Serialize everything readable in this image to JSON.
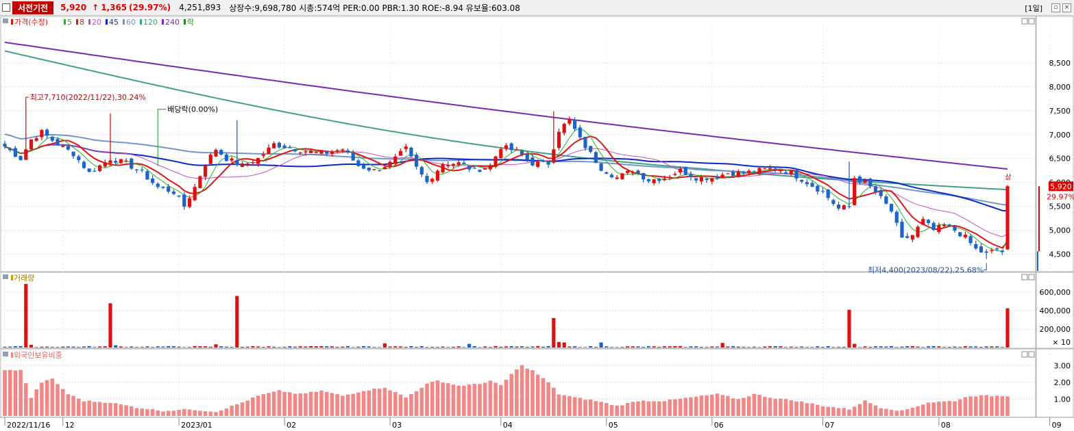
{
  "header": {
    "name": "서전기전",
    "price": "5,920",
    "arrow": "↑",
    "change": "1,365",
    "change_pct": "(29.97%)",
    "volume": "4,251,893",
    "info": "상장수:9,698,780 시총:574억 PER:0.00 PBR:1.30 ROE:-8.94 유보율:603.08",
    "period": "[1일]"
  },
  "colors": {
    "up": "#e01010",
    "down": "#1e64c8",
    "ma5": "#24b424",
    "ma8": "#e01414",
    "ma20": "#c050c0",
    "ma45": "#0a28c8",
    "ma60": "#6e96c8",
    "ma120": "#3ca08c",
    "ma240": "#7828b4",
    "foreign": "#f08888"
  },
  "price_panel": {
    "legend": [
      {
        "label": "가격(수정)",
        "color": "#e01010"
      },
      {
        "label": "5",
        "color": "#24b424"
      },
      {
        "label": "8",
        "color": "#e01414"
      },
      {
        "label": "20",
        "color": "#c050c0"
      },
      {
        "label": "45",
        "color": "#0a28c8"
      },
      {
        "label": "60",
        "color": "#6e96c8"
      },
      {
        "label": "120",
        "color": "#3ca08c"
      },
      {
        "label": "240",
        "color": "#7828b4"
      },
      {
        "label": "락",
        "color": "#209020"
      }
    ],
    "annotations": {
      "high": "최고7,710(2022/11/22),30.24%",
      "low": "최저4,400(2023/08/22),25.68%",
      "dividend": "배당락(0.00%)",
      "limit_up": "상",
      "last_price": "5,920",
      "last_pct": "29.97%"
    }
  },
  "volume_panel": {
    "title": "거래량",
    "unit": "× 10"
  },
  "foreign_panel": {
    "title": "외국인보유비중"
  },
  "chart_data": [
    {
      "type": "candlestick",
      "title": "가격(수정)",
      "ylim": [
        4150,
        9300
      ],
      "y_ticks": [
        "4,500",
        "5,000",
        "5,500",
        "6,000",
        "6,500",
        "7,000",
        "7,500",
        "8,000",
        "8,500"
      ],
      "y_tick_values": [
        4500,
        5000,
        5500,
        6000,
        6500,
        7000,
        7500,
        8000,
        8500
      ],
      "x_ticks": [
        "2022/11/16",
        "12",
        "2023/01",
        "02",
        "03",
        "04",
        "05",
        "06",
        "07",
        "08",
        "09"
      ],
      "x_tick_index": [
        0,
        11,
        33,
        53,
        73,
        94,
        114,
        134,
        155,
        177,
        198
      ],
      "high": {
        "value": 7710,
        "date": "2022/11/22",
        "pct": 30.24
      },
      "low": {
        "value": 4400,
        "date": "2023/08/22",
        "pct": 25.68
      },
      "last": {
        "value": 5920,
        "pct": 29.97
      },
      "close_anchors": [
        [
          0,
          6750
        ],
        [
          3,
          6500
        ],
        [
          5,
          6900
        ],
        [
          7,
          7050
        ],
        [
          10,
          6800
        ],
        [
          13,
          6600
        ],
        [
          16,
          6200
        ],
        [
          20,
          6500
        ],
        [
          23,
          6400
        ],
        [
          26,
          6200
        ],
        [
          29,
          5900
        ],
        [
          32,
          5800
        ],
        [
          34,
          5500
        ],
        [
          36,
          5900
        ],
        [
          38,
          6400
        ],
        [
          40,
          6700
        ],
        [
          42,
          6500
        ],
        [
          45,
          6350
        ],
        [
          48,
          6500
        ],
        [
          51,
          6800
        ],
        [
          55,
          6700
        ],
        [
          60,
          6600
        ],
        [
          64,
          6700
        ],
        [
          67,
          6350
        ],
        [
          70,
          6250
        ],
        [
          73,
          6400
        ],
        [
          76,
          6700
        ],
        [
          78,
          6300
        ],
        [
          80,
          6000
        ],
        [
          83,
          6400
        ],
        [
          86,
          6400
        ],
        [
          89,
          6250
        ],
        [
          92,
          6350
        ],
        [
          94,
          6750
        ],
        [
          97,
          6650
        ],
        [
          100,
          6400
        ],
        [
          103,
          6400
        ],
        [
          105,
          7100
        ],
        [
          107,
          7300
        ],
        [
          109,
          6900
        ],
        [
          111,
          6600
        ],
        [
          113,
          6300
        ],
        [
          116,
          6100
        ],
        [
          119,
          6250
        ],
        [
          122,
          6050
        ],
        [
          125,
          6100
        ],
        [
          128,
          6250
        ],
        [
          131,
          6100
        ],
        [
          134,
          6100
        ],
        [
          137,
          6200
        ],
        [
          140,
          6200
        ],
        [
          143,
          6250
        ],
        [
          146,
          6300
        ],
        [
          149,
          6200
        ],
        [
          152,
          6000
        ],
        [
          155,
          5800
        ],
        [
          158,
          5450
        ],
        [
          160,
          5500
        ],
        [
          161,
          6100
        ],
        [
          163,
          6000
        ],
        [
          165,
          5800
        ],
        [
          168,
          5400
        ],
        [
          170,
          4800
        ],
        [
          172,
          4900
        ],
        [
          174,
          5200
        ],
        [
          176,
          5000
        ],
        [
          178,
          5100
        ],
        [
          180,
          5000
        ],
        [
          182,
          4850
        ],
        [
          184,
          4600
        ],
        [
          186,
          4500
        ],
        [
          188,
          4600
        ],
        [
          189,
          4550
        ],
        [
          190,
          5920
        ]
      ],
      "limit_up_bars": [
        4,
        20,
        44,
        104,
        160,
        190
      ]
    },
    {
      "type": "bar",
      "title": "거래량",
      "ylim": [
        0,
        720000
      ],
      "y_ticks": [
        "200,000",
        "400,000",
        "600,000"
      ],
      "y_tick_values": [
        200000,
        400000,
        600000
      ],
      "spikes": [
        [
          4,
          690000
        ],
        [
          20,
          480000
        ],
        [
          44,
          560000
        ],
        [
          104,
          320000
        ],
        [
          160,
          410000
        ],
        [
          190,
          425000
        ]
      ],
      "medium": [
        [
          5,
          30000
        ],
        [
          21,
          25000
        ],
        [
          40,
          35000
        ],
        [
          72,
          45000
        ],
        [
          88,
          40000
        ],
        [
          105,
          60000
        ],
        [
          106,
          55000
        ],
        [
          113,
          55000
        ],
        [
          136,
          50000
        ],
        [
          161,
          40000
        ]
      ],
      "base_value": 12000
    },
    {
      "type": "bar",
      "title": "외국인보유비중",
      "ylim": [
        0,
        3.5
      ],
      "y_ticks": [
        "1.00",
        "2.00",
        "3.00"
      ],
      "y_tick_values": [
        1,
        2,
        3
      ],
      "anchors": [
        [
          0,
          2.7
        ],
        [
          3,
          2.75
        ],
        [
          5,
          1.1
        ],
        [
          7,
          2.0
        ],
        [
          9,
          2.2
        ],
        [
          12,
          1.3
        ],
        [
          15,
          0.9
        ],
        [
          20,
          0.8
        ],
        [
          25,
          0.5
        ],
        [
          30,
          0.3
        ],
        [
          35,
          0.4
        ],
        [
          40,
          0.25
        ],
        [
          45,
          0.8
        ],
        [
          48,
          1.2
        ],
        [
          52,
          1.5
        ],
        [
          56,
          1.3
        ],
        [
          60,
          1.5
        ],
        [
          64,
          1.2
        ],
        [
          68,
          1.5
        ],
        [
          72,
          1.7
        ],
        [
          76,
          1.1
        ],
        [
          80,
          1.9
        ],
        [
          82,
          2.1
        ],
        [
          86,
          1.8
        ],
        [
          90,
          1.9
        ],
        [
          92,
          2.1
        ],
        [
          94,
          1.8
        ],
        [
          96,
          2.5
        ],
        [
          98,
          3.0
        ],
        [
          100,
          2.7
        ],
        [
          103,
          2.0
        ],
        [
          105,
          1.3
        ],
        [
          108,
          1.1
        ],
        [
          112,
          0.9
        ],
        [
          116,
          0.6
        ],
        [
          120,
          0.9
        ],
        [
          125,
          0.9
        ],
        [
          130,
          1.1
        ],
        [
          135,
          1.3
        ],
        [
          139,
          1.0
        ],
        [
          142,
          1.3
        ],
        [
          145,
          1.1
        ],
        [
          150,
          0.9
        ],
        [
          155,
          0.6
        ],
        [
          160,
          0.4
        ],
        [
          163,
          0.9
        ],
        [
          166,
          0.5
        ],
        [
          170,
          0.3
        ],
        [
          175,
          0.8
        ],
        [
          180,
          0.9
        ],
        [
          183,
          1.2
        ],
        [
          186,
          1.2
        ],
        [
          190,
          1.2
        ]
      ]
    }
  ]
}
